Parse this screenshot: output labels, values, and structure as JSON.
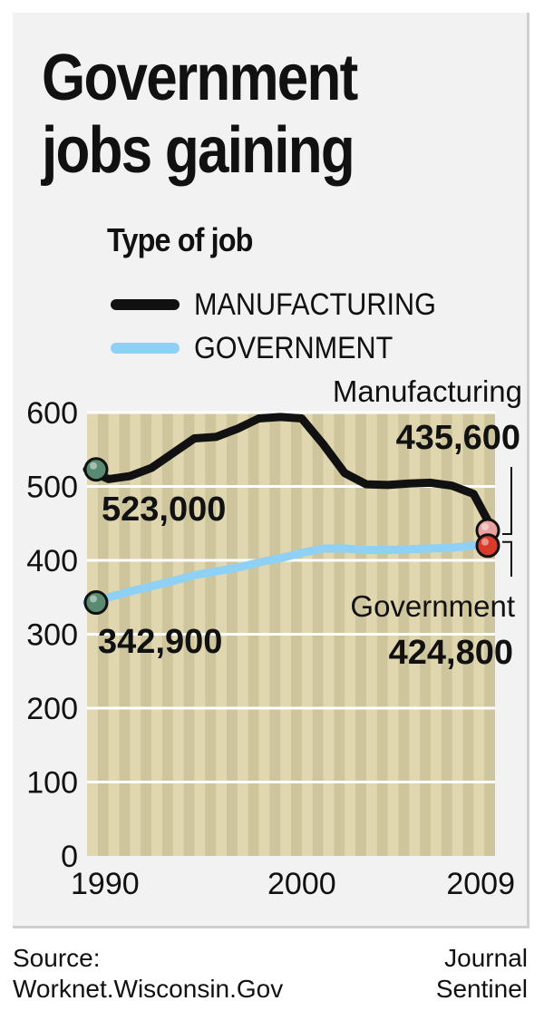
{
  "title_lines": [
    "Government",
    "jobs gaining"
  ],
  "subtitle": "Type of job",
  "legend": [
    {
      "label": "MANUFACTURING",
      "color": "#111111"
    },
    {
      "label": "GOVERNMENT",
      "color": "#8fd0f5"
    }
  ],
  "colors": {
    "plot_bg": "#e0d7b0",
    "stripe": "#cec59c",
    "grid": "#ffffff",
    "dot_start": "#5a8a72",
    "dot_end": "#d93a2a"
  },
  "chart_data": {
    "type": "line",
    "x_ticks": [
      "1990",
      "2000",
      "2009"
    ],
    "y_ticks": [
      0,
      100,
      200,
      300,
      400,
      500,
      600
    ],
    "ylim": [
      0,
      600
    ],
    "xlim": [
      1990,
      2009
    ],
    "grid": true,
    "legend_position": "top-left",
    "series": [
      {
        "name": "MANUFACTURING",
        "color": "#111111",
        "x": [
          1990,
          1991,
          1992,
          1993,
          1994,
          1995,
          1996,
          1997,
          1998,
          1999,
          2000,
          2001,
          2002,
          2003,
          2004,
          2005,
          2006,
          2007,
          2008,
          2009
        ],
        "values": [
          523,
          510,
          514,
          525,
          545,
          565,
          567,
          578,
          592,
          594,
          592,
          557,
          518,
          503,
          502,
          504,
          505,
          501,
          490,
          435.6
        ]
      },
      {
        "name": "GOVERNMENT",
        "color": "#8fd0f5",
        "x": [
          1990,
          1991,
          1992,
          1993,
          1994,
          1995,
          1996,
          1997,
          1998,
          1999,
          2000,
          2001,
          2002,
          2003,
          2004,
          2005,
          2006,
          2007,
          2008,
          2009
        ],
        "values": [
          342.9,
          350,
          358,
          365,
          372,
          380,
          385,
          390,
          397,
          403,
          410,
          416,
          416,
          414,
          414,
          415,
          416,
          417,
          420,
          424.8
        ]
      }
    ],
    "annotations": {
      "manufacturing_start": "523,000",
      "government_start": "342,900",
      "manufacturing_end_label": "Manufacturing",
      "manufacturing_end_value": "435,600",
      "government_end_label": "Government",
      "government_end_value": "424,800"
    }
  },
  "source_lines": [
    "Source:",
    "Worknet.Wisconsin.Gov"
  ],
  "credit_lines": [
    "Journal",
    "Sentinel"
  ]
}
